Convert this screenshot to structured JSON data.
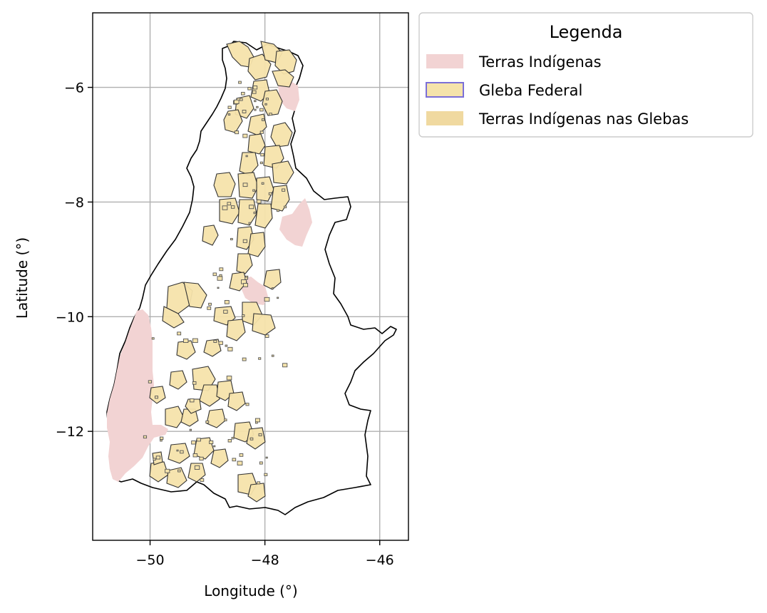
{
  "colors": {
    "terras_indigenas": "#f2d3d3",
    "gleba_fill": "#f5e3ab",
    "gleba_edge": "#7b6fd8",
    "tig_fill": "#f0d9a0",
    "boundary": "#000000",
    "grid": "#b0b0b0",
    "glebas_outline": "#333333"
  },
  "map": {
    "x_axis": {
      "label": "Longitude (°)",
      "ticks": [
        -50,
        -48,
        -46
      ],
      "tick_labels": [
        "−50",
        "−48",
        "−46"
      ],
      "range": [
        -51.0,
        -45.5
      ]
    },
    "y_axis": {
      "label": "Latitude (°)",
      "ticks": [
        -6,
        -8,
        -10,
        -12
      ],
      "tick_labels": [
        "−6",
        "−8",
        "−10",
        "−12"
      ],
      "range": [
        -13.9,
        -4.7
      ]
    },
    "grid": true
  },
  "legend": {
    "title": "Legenda",
    "placement": "outside upper right",
    "items": [
      {
        "label": "Terras Indígenas",
        "swatch": "fill",
        "color": "#f2d3d3"
      },
      {
        "label": "Gleba Federal",
        "swatch": "outlined",
        "color": "#f5e3ab",
        "edge": "#7b6fd8"
      },
      {
        "label": "Terras Indígenas nas Glebas",
        "swatch": "fill",
        "color": "#f0d9a0"
      }
    ]
  }
}
